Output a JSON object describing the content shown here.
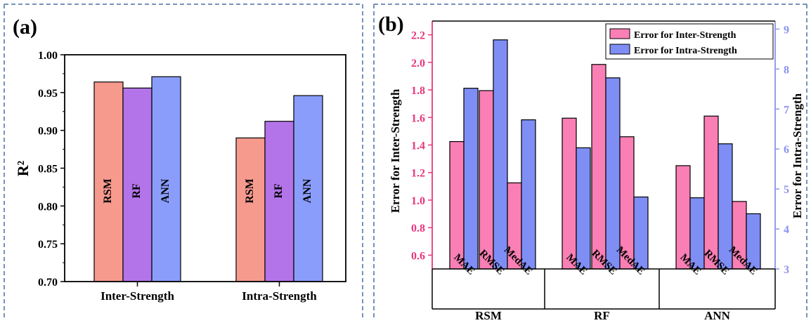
{
  "panels": {
    "a": {
      "label": "(a)"
    },
    "b": {
      "label": "(b)"
    }
  },
  "colors": {
    "rsm_a": "#f79a8e",
    "rf_a": "#b374e9",
    "ann_a": "#8a9dfb",
    "inter_b": "#f97fb4",
    "intra_b": "#7f8ef5",
    "left_axis_b": "#e8377e",
    "right_axis_b": "#8b93ee",
    "frame_dash": "#4a6fa5"
  },
  "chart_data": [
    {
      "type": "bar",
      "panel": "(a)",
      "ylabel": "R²",
      "ylim": [
        0.7,
        1.0
      ],
      "yticks": [
        "0.70",
        "0.75",
        "0.80",
        "0.85",
        "0.90",
        "0.95",
        "1.00"
      ],
      "categories": [
        "Inter-Strength",
        "Intra-Strength"
      ],
      "series": [
        {
          "name": "RSM",
          "values": [
            0.964,
            0.89
          ]
        },
        {
          "name": "RF",
          "values": [
            0.956,
            0.912
          ]
        },
        {
          "name": "ANN",
          "values": [
            0.971,
            0.946
          ]
        }
      ]
    },
    {
      "type": "bar",
      "panel": "(b)",
      "ylabel": "Error for Inter-Strength",
      "y2label": "Error for Intra-Strength",
      "ylim": [
        0.5,
        2.3
      ],
      "y2lim": [
        3,
        9.2
      ],
      "yticks": [
        "0.6",
        "0.8",
        "1.0",
        "1.2",
        "1.4",
        "1.6",
        "1.8",
        "2.0",
        "2.2"
      ],
      "y2ticks": [
        "3",
        "4",
        "5",
        "6",
        "7",
        "8",
        "9"
      ],
      "groups": [
        "RSM",
        "RF",
        "ANN"
      ],
      "categories": [
        "MAE",
        "RMSE",
        "MedAE"
      ],
      "legend_position": "top-right",
      "series": [
        {
          "name": "Error for Inter-Strength",
          "axis": "left",
          "values": [
            [
              1.425,
              1.795,
              1.125
            ],
            [
              1.595,
              1.985,
              1.46
            ],
            [
              1.25,
              1.61,
              0.99
            ]
          ]
        },
        {
          "name": "Error for Intra-Strength",
          "axis": "right",
          "values": [
            [
              7.52,
              8.73,
              6.73
            ],
            [
              6.03,
              7.78,
              4.8
            ],
            [
              4.78,
              6.13,
              4.38
            ]
          ]
        }
      ]
    }
  ]
}
